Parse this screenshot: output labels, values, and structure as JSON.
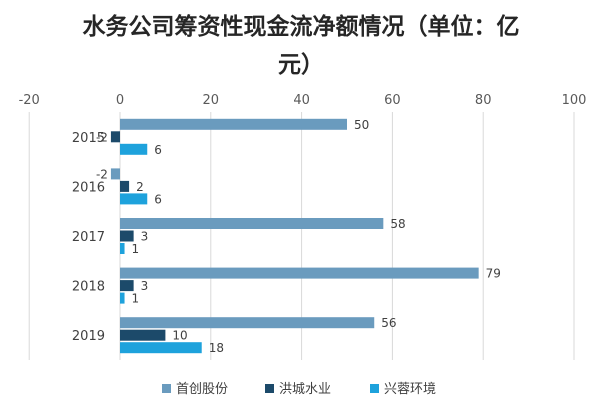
{
  "chart_data": {
    "type": "bar",
    "orientation": "horizontal",
    "title_line1": "水务公司筹资性现金流净额情况（单位：亿",
    "title_line2": "元）",
    "categories": [
      "2015",
      "2016",
      "2017",
      "2018",
      "2019"
    ],
    "series": [
      {
        "name": "首创股份",
        "color": "#6a9bbe",
        "values": [
          50,
          -2,
          58,
          79,
          56
        ]
      },
      {
        "name": "洪城水业",
        "color": "#1c4a6a",
        "values": [
          -2,
          2,
          3,
          3,
          10
        ]
      },
      {
        "name": "兴蓉环境",
        "color": "#1ea2dc",
        "values": [
          6,
          6,
          1,
          1,
          18
        ]
      }
    ],
    "data_labels": [
      [
        "50",
        "-2",
        "6"
      ],
      [
        "-2",
        "2",
        "6"
      ],
      [
        "58",
        "3",
        "1"
      ],
      [
        "79",
        "3",
        "1"
      ],
      [
        "56",
        "10",
        "18"
      ]
    ],
    "xlim": [
      -20,
      100
    ],
    "xticks": [
      "-20",
      "0",
      "20",
      "40",
      "60",
      "80",
      "100"
    ],
    "grid": "vertical",
    "legend": "bottom"
  }
}
